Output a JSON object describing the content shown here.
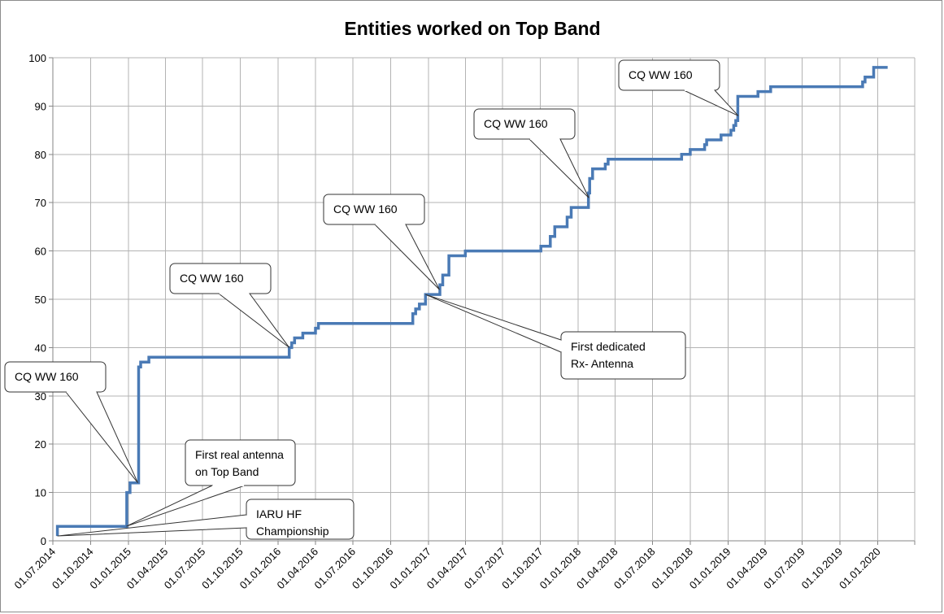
{
  "chart_data": {
    "type": "line",
    "title": "Entities worked on Top Band",
    "xlabel": "",
    "ylabel": "",
    "x_ticks": [
      "01.07.2014",
      "01.10.2014",
      "01.01.2015",
      "01.04.2015",
      "01.07.2015",
      "01.10.2015",
      "01.01.2016",
      "01.04.2016",
      "01.07.2016",
      "01.10.2016",
      "01.01.2017",
      "01.04.2017",
      "01.07.2017",
      "01.10.2017",
      "01.01.2018",
      "01.04.2018",
      "01.07.2018",
      "01.10.2018",
      "01.01.2019",
      "01.04.2019",
      "01.07.2019",
      "01.10.2019",
      "01.01.2020"
    ],
    "xlim": [
      "2014-07-01",
      "2020-03-31"
    ],
    "ylim": [
      0,
      100
    ],
    "y_ticks": [
      0,
      10,
      20,
      30,
      40,
      50,
      60,
      70,
      80,
      90,
      100
    ],
    "grid": true,
    "step": true,
    "series_color": "#4a7ab5",
    "series": [
      {
        "name": "",
        "points": [
          [
            "2014-07-12",
            1
          ],
          [
            "2014-07-12",
            3
          ],
          [
            "2014-12-27",
            3
          ],
          [
            "2014-12-28",
            10
          ],
          [
            "2015-01-05",
            12
          ],
          [
            "2015-01-25",
            12
          ],
          [
            "2015-01-26",
            36
          ],
          [
            "2015-01-31",
            37
          ],
          [
            "2015-02-20",
            38
          ],
          [
            "2016-01-27",
            38
          ],
          [
            "2016-01-28",
            40
          ],
          [
            "2016-02-03",
            41
          ],
          [
            "2016-02-10",
            42
          ],
          [
            "2016-03-01",
            43
          ],
          [
            "2016-04-01",
            44
          ],
          [
            "2016-04-08",
            45
          ],
          [
            "2016-11-22",
            45
          ],
          [
            "2016-11-24",
            47
          ],
          [
            "2016-12-01",
            48
          ],
          [
            "2016-12-10",
            49
          ],
          [
            "2016-12-25",
            51
          ],
          [
            "2017-01-28",
            51
          ],
          [
            "2017-01-29",
            53
          ],
          [
            "2017-02-05",
            55
          ],
          [
            "2017-02-20",
            59
          ],
          [
            "2017-03-25",
            59
          ],
          [
            "2017-04-01",
            60
          ],
          [
            "2017-09-30",
            60
          ],
          [
            "2017-10-02",
            61
          ],
          [
            "2017-10-20",
            61
          ],
          [
            "2017-10-25",
            63
          ],
          [
            "2017-11-05",
            65
          ],
          [
            "2017-12-05",
            67
          ],
          [
            "2017-12-15",
            69
          ],
          [
            "2018-01-25",
            69
          ],
          [
            "2018-01-26",
            72
          ],
          [
            "2018-01-29",
            75
          ],
          [
            "2018-02-05",
            77
          ],
          [
            "2018-03-05",
            77
          ],
          [
            "2018-03-08",
            78
          ],
          [
            "2018-03-15",
            79
          ],
          [
            "2018-09-08",
            79
          ],
          [
            "2018-09-10",
            80
          ],
          [
            "2018-10-01",
            81
          ],
          [
            "2018-11-02",
            81
          ],
          [
            "2018-11-05",
            82
          ],
          [
            "2018-11-10",
            83
          ],
          [
            "2018-12-10",
            83
          ],
          [
            "2018-12-15",
            84
          ],
          [
            "2019-01-05",
            84
          ],
          [
            "2019-01-08",
            85
          ],
          [
            "2019-01-15",
            86
          ],
          [
            "2019-01-20",
            87
          ],
          [
            "2019-01-25",
            92
          ],
          [
            "2019-03-10",
            92
          ],
          [
            "2019-03-15",
            93
          ],
          [
            "2019-04-05",
            93
          ],
          [
            "2019-04-15",
            94
          ],
          [
            "2019-11-20",
            94
          ],
          [
            "2019-11-25",
            95
          ],
          [
            "2019-12-01",
            96
          ],
          [
            "2019-12-20",
            96
          ],
          [
            "2019-12-22",
            98
          ],
          [
            "2020-01-25",
            98
          ]
        ]
      }
    ],
    "annotations": [
      {
        "lines": [
          "CQ WW 160"
        ],
        "target": [
          "2015-01-24",
          12
        ]
      },
      {
        "lines": [
          "First real antenna",
          "on Top Band"
        ],
        "target": [
          "2014-12-27",
          3
        ]
      },
      {
        "lines": [
          "IARU HF",
          "Championship"
        ],
        "target": [
          "2014-07-12",
          1
        ]
      },
      {
        "lines": [
          "CQ WW 160"
        ],
        "target": [
          "2016-01-28",
          40
        ]
      },
      {
        "lines": [
          "CQ WW 160"
        ],
        "target": [
          "2017-01-28",
          52
        ]
      },
      {
        "lines": [
          "First dedicated",
          "Rx- Antenna"
        ],
        "target": [
          "2016-12-25",
          51
        ]
      },
      {
        "lines": [
          "CQ WW 160"
        ],
        "target": [
          "2018-01-27",
          71
        ]
      },
      {
        "lines": [
          "CQ WW 160"
        ],
        "target": [
          "2019-01-26",
          88
        ]
      }
    ]
  }
}
